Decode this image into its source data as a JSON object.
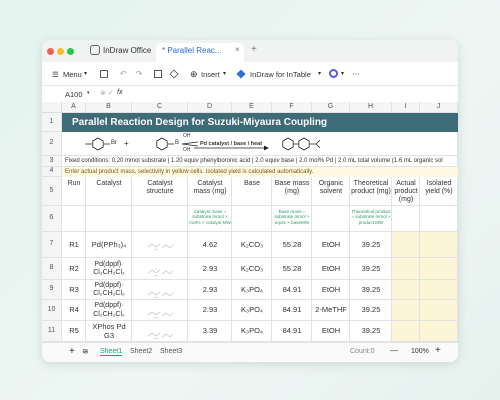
{
  "tabs": [
    "InDraw Office",
    "* Parallel Reac..."
  ],
  "toolbar": {
    "menu": "Menu",
    "insert": "Insert",
    "plugin": "InDraw for InTable"
  },
  "formula_bar": {
    "cell_ref": "A100",
    "fx": "fx"
  },
  "columns": [
    "A",
    "B",
    "C",
    "D",
    "E",
    "F",
    "G",
    "H",
    "I",
    "J"
  ],
  "row_numbers": [
    "1",
    "2",
    "3",
    "4",
    "5",
    "6",
    "7",
    "8",
    "9",
    "10",
    "11"
  ],
  "title": "Parallel Reaction Design for Suzuki-Miyaura Coupling",
  "scheme": {
    "bromo": "Br",
    "plus": "+",
    "boron": "B",
    "oh_top": "OH",
    "oh_bottom": "OH",
    "conditions": "Pd catalyst / base / heat"
  },
  "fixed_conditions": "Fixed conditions: 0.20 mmol substrate | 1.20 equiv phenylboronic acid | 2.0 equiv base | 2.0 mol% Pd | 2.0 mL total volume (1.6 mL organic sol",
  "instructions": "Enter actual product mass, selectivity in yellow cells. Isolated yield is calculated automatically.",
  "table": {
    "headers": [
      "Run",
      "Catalyst",
      "Catalyst structure",
      "Catalyst mass (mg)",
      "Base",
      "Base mass (mg)",
      "Organic solvent",
      "Theoretical product (mg)",
      "Actual product (mg)",
      "Isolated yield (%)"
    ],
    "notes": {
      "catalyst_mass": "Catalyst mass = substrate mmol × mol% × catalyst MW",
      "base_mass": "Base mass = substrate mmol × equiv × baseMW",
      "theoretical_product": "Theoretical product = substrate mmol × product MW"
    },
    "rows": [
      [
        "R1",
        "Pd(PPh₃)₄",
        4.62,
        "K₂CO₃",
        55.28,
        "EtOH",
        39.25
      ],
      [
        "R2",
        [
          "Pd(dppf)·",
          "Cl₂CH₂Cl₂"
        ],
        2.93,
        "K₂CO₃",
        55.28,
        "EtOH",
        39.25
      ],
      [
        "R3",
        [
          "Pd(dppf)·",
          "Cl₂CH₂Cl₂"
        ],
        2.93,
        "K₃PO₄",
        84.91,
        "EtOH",
        39.25
      ],
      [
        "R4",
        [
          "Pd(dppf)·",
          "Cl₂CH₂Cl₂"
        ],
        2.93,
        "K₃PO₄",
        84.91,
        "2-MeTHF",
        39.25
      ],
      [
        "R5",
        "XPhos Pd G3",
        3.39,
        "K₃PO₄",
        84.91,
        "EtOH",
        39.25
      ]
    ]
  },
  "sheets": [
    "Sheet1",
    "Sheet2",
    "Sheet3"
  ],
  "status": {
    "count": "Count:0",
    "zoom": "100%"
  }
}
